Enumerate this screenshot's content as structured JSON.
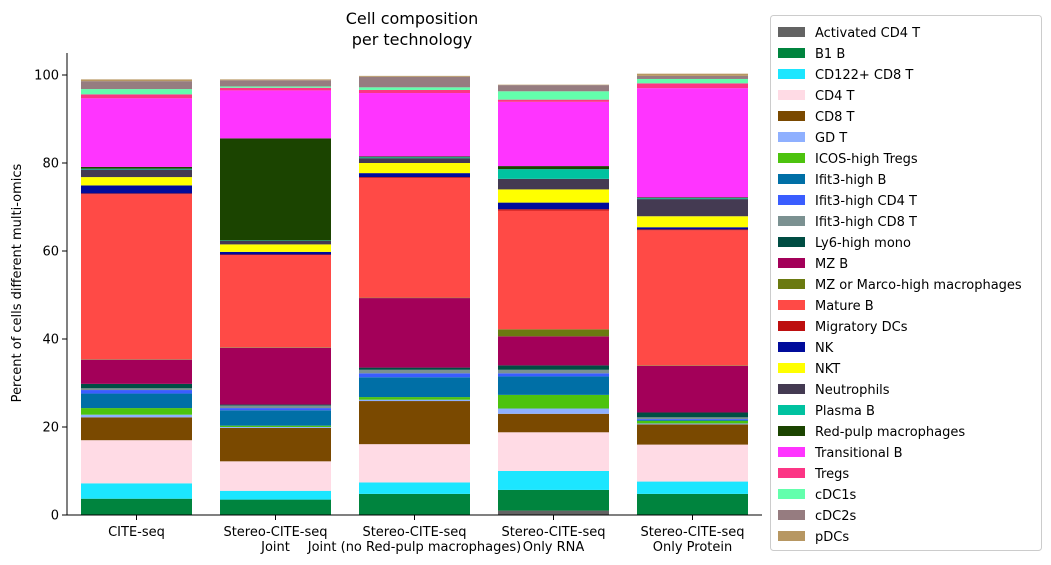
{
  "chart_data": {
    "type": "bar",
    "stacked": true,
    "title": [
      "Cell composition",
      "per technology"
    ],
    "xlabel": "",
    "ylabel": "Percent of cells different multi-omics",
    "ylim": [
      0,
      105
    ],
    "yticks": [
      0,
      20,
      40,
      60,
      80,
      100
    ],
    "grid": false,
    "legend_position": "right-outside",
    "categories": [
      [
        "CITE-seq"
      ],
      [
        "Stereo-CITE-seq",
        "Joint"
      ],
      [
        "Stereo-CITE-seq",
        "Joint (no Red-pulp macrophages)"
      ],
      [
        "Stereo-CITE-seq",
        "Only RNA"
      ],
      [
        "Stereo-CITE-seq",
        "Only Protein"
      ]
    ],
    "series": [
      {
        "name": "Activated CD4 T",
        "color": "#636363",
        "values": [
          0.1,
          0.1,
          0.1,
          1.0,
          0.1
        ]
      },
      {
        "name": "B1 B",
        "color": "#00843e",
        "values": [
          3.6,
          3.4,
          4.7,
          4.7,
          4.7
        ]
      },
      {
        "name": "CD122+ CD8 T",
        "color": "#1ce6ff",
        "values": [
          3.5,
          2.0,
          2.6,
          4.3,
          2.8
        ]
      },
      {
        "name": "CD4 T",
        "color": "#ffdbe5",
        "values": [
          9.8,
          6.7,
          8.7,
          8.8,
          8.4
        ]
      },
      {
        "name": "CD8 T",
        "color": "#7a4900",
        "values": [
          5.2,
          7.6,
          9.8,
          4.2,
          4.6
        ]
      },
      {
        "name": "GD T",
        "color": "#8fb0ff",
        "values": [
          0.6,
          0.2,
          0.3,
          1.2,
          0.2
        ]
      },
      {
        "name": "ICOS-high Tregs",
        "color": "#4dc30e",
        "values": [
          1.5,
          0.3,
          0.6,
          3.1,
          0.6
        ]
      },
      {
        "name": "Ifit3-high B",
        "color": "#006fa6",
        "values": [
          3.3,
          3.5,
          4.5,
          4.2,
          0.2
        ]
      },
      {
        "name": "Ifit3-high CD4 T",
        "color": "#3a5dff",
        "values": [
          0.8,
          0.5,
          0.9,
          0.7,
          0.2
        ]
      },
      {
        "name": "Ifit3-high CD8 T",
        "color": "#7b9191",
        "values": [
          0.4,
          0.6,
          0.8,
          0.8,
          0.4
        ]
      },
      {
        "name": "Ly6-high mono",
        "color": "#004d43",
        "values": [
          1.0,
          0.2,
          0.5,
          1.0,
          1.1
        ]
      },
      {
        "name": "MZ B",
        "color": "#a30059",
        "values": [
          5.5,
          12.9,
          15.8,
          6.6,
          10.6
        ]
      },
      {
        "name": "MZ or Marco-high macrophages",
        "color": "#6b7a10",
        "values": [
          0.1,
          0.1,
          0.1,
          1.6,
          0.1
        ]
      },
      {
        "name": "Mature B",
        "color": "#ff4a46",
        "values": [
          37.5,
          21.0,
          27.2,
          27.0,
          30.7
        ]
      },
      {
        "name": "Migratory DCs",
        "color": "#bd0f0f",
        "values": [
          0.2,
          0.1,
          0.2,
          0.3,
          0.2
        ]
      },
      {
        "name": "NK",
        "color": "#000b9b",
        "values": [
          1.8,
          0.6,
          0.9,
          1.5,
          0.5
        ]
      },
      {
        "name": "NKT",
        "color": "#ffff00",
        "values": [
          1.9,
          1.7,
          2.3,
          3.0,
          2.5
        ]
      },
      {
        "name": "Neutrophils",
        "color": "#443a52",
        "values": [
          1.7,
          0.8,
          1.1,
          2.4,
          3.9
        ]
      },
      {
        "name": "Plasma B",
        "color": "#00c2a0",
        "values": [
          0.2,
          0.1,
          0.2,
          2.2,
          0.2
        ]
      },
      {
        "name": "Red-pulp macrophages",
        "color": "#1b4400",
        "values": [
          0.4,
          23.2,
          0.2,
          0.7,
          0.2
        ]
      },
      {
        "name": "Transitional B",
        "color": "#ff34ff",
        "values": [
          15.6,
          10.9,
          14.4,
          14.6,
          24.8
        ]
      },
      {
        "name": "Tregs",
        "color": "#fc3585",
        "values": [
          0.9,
          0.6,
          0.7,
          0.5,
          1.1
        ]
      },
      {
        "name": "cDC1s",
        "color": "#63ffac",
        "values": [
          1.2,
          0.3,
          0.6,
          1.9,
          1.0
        ]
      },
      {
        "name": "cDC2s",
        "color": "#967c80",
        "values": [
          1.8,
          1.4,
          2.4,
          1.4,
          0.7
        ]
      },
      {
        "name": "pDCs",
        "color": "#b79762",
        "values": [
          0.4,
          0.2,
          0.2,
          0.1,
          0.5
        ]
      }
    ]
  }
}
